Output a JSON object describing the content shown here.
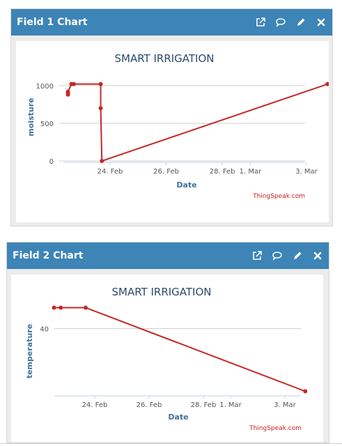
{
  "widgets": [
    {
      "title": "Field 1 Chart",
      "icons": [
        "external-link-icon",
        "comment-icon",
        "pencil-icon",
        "close-icon"
      ],
      "chart_title": "SMART IRRIGATION",
      "credit": "ThingSpeak.com",
      "chart_data": {
        "type": "line",
        "title": "SMART IRRIGATION",
        "xlabel": "Date",
        "ylabel": "moisture",
        "x_ticks": [
          "24. Feb",
          "26. Feb",
          "28. Feb",
          "1. Mar",
          "3. Mar"
        ],
        "y_ticks": [
          0,
          500,
          1000
        ],
        "ylim": [
          0,
          1100
        ],
        "grid": true,
        "color": "#c62828",
        "series": [
          {
            "points": [
              {
                "x": "2023-02-22 12:00",
                "y": 880
              },
              {
                "x": "2023-02-22 12:00",
                "y": 900
              },
              {
                "x": "2023-02-22 12:00",
                "y": 920
              },
              {
                "x": "2023-02-22 15:00",
                "y": 1020
              },
              {
                "x": "2023-02-22 17:00",
                "y": 1020
              },
              {
                "x": "2023-02-23 16:00",
                "y": 1020
              },
              {
                "x": "2023-02-23 16:00",
                "y": 700
              },
              {
                "x": "2023-02-23 17:00",
                "y": 0
              },
              {
                "x": "2023-03-03 18:00",
                "y": 1020
              }
            ]
          }
        ]
      }
    },
    {
      "title": "Field 2 Chart",
      "icons": [
        "external-link-icon",
        "comment-icon",
        "pencil-icon",
        "close-icon"
      ],
      "chart_title": "SMART IRRIGATION",
      "credit": "ThingSpeak.com",
      "chart_data": {
        "type": "line",
        "title": "SMART IRRIGATION",
        "xlabel": "Date",
        "ylabel": "temperature",
        "x_ticks": [
          "24. Feb",
          "26. Feb",
          "28. Feb",
          "1. Mar",
          "3. Mar"
        ],
        "y_ticks": [
          40
        ],
        "ylim": [
          33.7,
          42.5
        ],
        "grid": true,
        "color": "#c62828",
        "series": [
          {
            "points": [
              {
                "x": "2023-02-22 12:00",
                "y": 42
              },
              {
                "x": "2023-02-22 18:00",
                "y": 42
              },
              {
                "x": "2023-02-23 16:00",
                "y": 42
              },
              {
                "x": "2023-03-03 18:00",
                "y": 34
              }
            ]
          }
        ]
      }
    }
  ]
}
